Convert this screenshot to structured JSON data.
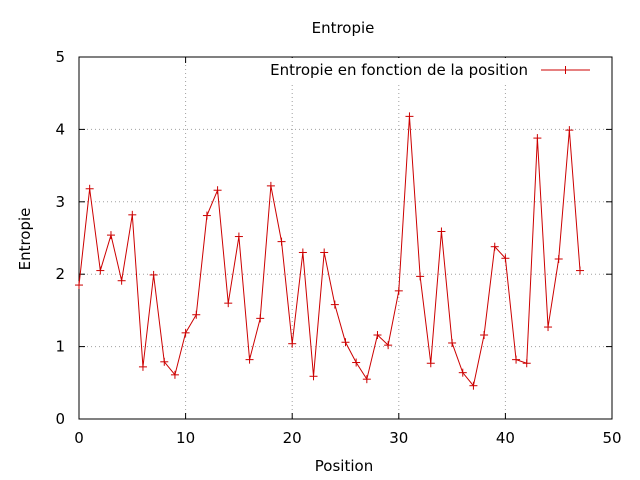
{
  "chart_data": {
    "type": "line",
    "title": "Entropie",
    "xlabel": "Position",
    "ylabel": "Entropie",
    "xlim": [
      0,
      50
    ],
    "ylim": [
      0,
      5
    ],
    "x_ticks": [
      0,
      10,
      20,
      30,
      40,
      50
    ],
    "y_ticks": [
      0,
      1,
      2,
      3,
      4,
      5
    ],
    "x_tick_labels": [
      "0",
      "10",
      "20",
      "30",
      "40",
      "50"
    ],
    "y_tick_labels": [
      "0",
      "1",
      "2",
      "3",
      "4",
      "5"
    ],
    "grid": true,
    "legend_position": "top-right",
    "series": [
      {
        "name": "Entropie en fonction de la position",
        "color": "#cc0000",
        "marker": "plus",
        "x": [
          0,
          1,
          2,
          3,
          4,
          5,
          6,
          7,
          8,
          9,
          10,
          11,
          12,
          13,
          14,
          15,
          16,
          17,
          18,
          19,
          20,
          21,
          22,
          23,
          24,
          25,
          26,
          27,
          28,
          29,
          30,
          31,
          32,
          33,
          34,
          35,
          36,
          37,
          38,
          39,
          40,
          41,
          42,
          43,
          44,
          45,
          46,
          47
        ],
        "y": [
          1.85,
          3.18,
          2.05,
          2.54,
          1.91,
          2.82,
          0.72,
          1.99,
          0.79,
          0.61,
          1.19,
          1.44,
          2.81,
          3.16,
          1.6,
          2.52,
          0.82,
          1.39,
          3.22,
          2.45,
          1.04,
          2.3,
          0.59,
          2.3,
          1.58,
          1.06,
          0.78,
          0.55,
          1.16,
          1.02,
          1.77,
          4.18,
          1.97,
          0.77,
          2.59,
          1.05,
          0.64,
          0.46,
          1.16,
          2.38,
          2.22,
          0.82,
          0.77,
          3.88,
          1.27,
          2.21,
          3.99,
          2.05
        ]
      }
    ]
  }
}
